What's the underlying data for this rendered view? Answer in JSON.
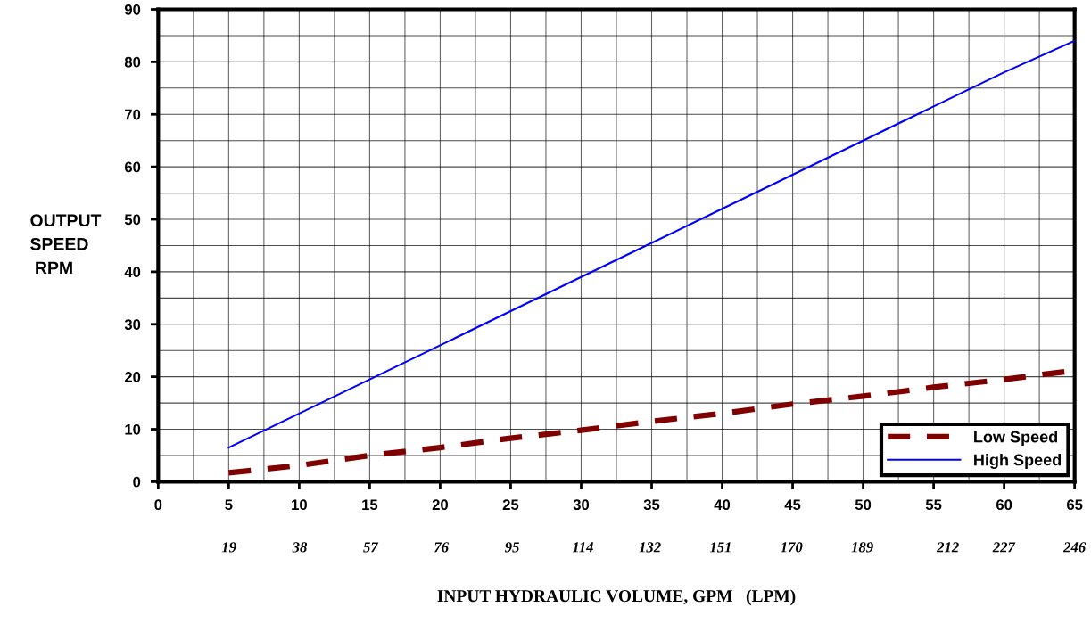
{
  "chart_data": {
    "type": "line",
    "xlabel": "INPUT HYDRAULIC VOLUME, GPM   (LPM)",
    "ylabel": "OUTPUT\nSPEED\n RPM",
    "x": [
      5,
      10,
      15,
      20,
      25,
      30,
      35,
      40,
      45,
      50,
      55,
      60,
      65
    ],
    "series": [
      {
        "name": "Low Speed",
        "color": "#800000",
        "line_style": "dashed",
        "values": [
          1.7,
          3.1,
          5.0,
          6.5,
          8.3,
          9.8,
          11.5,
          13,
          14.8,
          16.3,
          18,
          19.5,
          21.2
        ]
      },
      {
        "name": "High Speed",
        "color": "#0000ff",
        "line_style": "solid",
        "values": [
          6.5,
          13,
          19.5,
          26,
          32.5,
          39,
          45.5,
          52,
          58.5,
          65,
          71.5,
          78,
          84
        ]
      }
    ],
    "xlim": [
      0,
      65
    ],
    "xticks": [
      0,
      5,
      10,
      15,
      20,
      25,
      30,
      35,
      40,
      45,
      50,
      55,
      60,
      65
    ],
    "x2lim": [
      0,
      246
    ],
    "x2ticks": [
      19,
      38,
      57,
      76,
      95,
      114,
      132,
      151,
      170,
      189,
      212,
      227,
      246
    ],
    "ylim": [
      0,
      90
    ],
    "yticks": [
      0,
      10,
      20,
      30,
      40,
      50,
      60,
      70,
      80,
      90
    ],
    "grid": true,
    "legend": "bottom right",
    "marker": "none"
  }
}
